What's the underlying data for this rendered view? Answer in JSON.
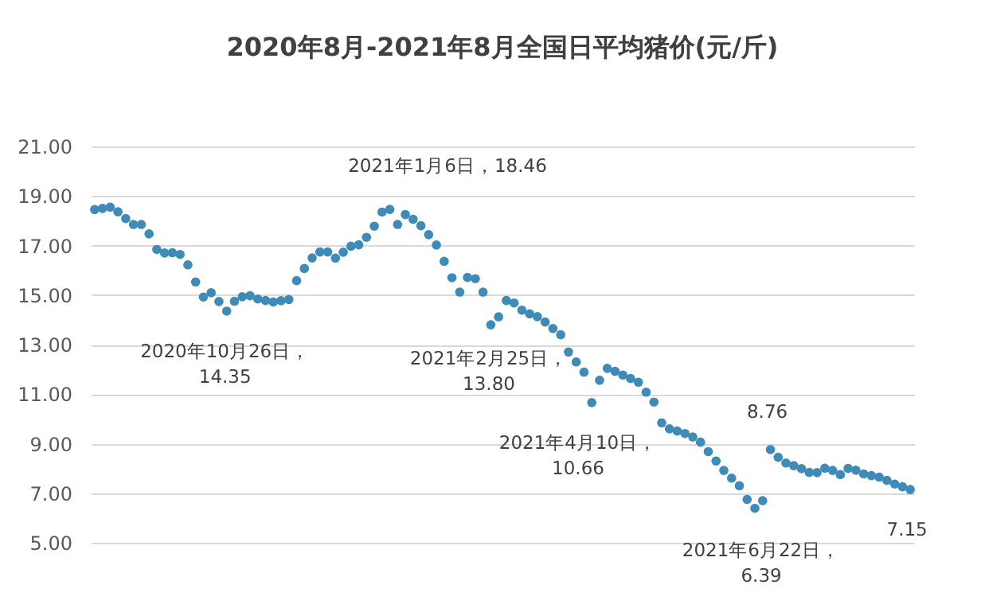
{
  "chart_data": {
    "type": "scatter",
    "title": "2020年8月-2021年8月全国日平均猪价(元/斤)",
    "categories": [
      null,
      null,
      null,
      null,
      null,
      null,
      null,
      null,
      null,
      null,
      null,
      null,
      null,
      null,
      null,
      null,
      null,
      null,
      null,
      null,
      null,
      null,
      null,
      null,
      null,
      null,
      null,
      null,
      null,
      null,
      null,
      null,
      null,
      null,
      null,
      null,
      null,
      null,
      null,
      null,
      null,
      null,
      null,
      null,
      null,
      null,
      null,
      null,
      null,
      null,
      null,
      null,
      null,
      null,
      null,
      null,
      null,
      null,
      null,
      null,
      null,
      null,
      null,
      null,
      null,
      null,
      null,
      null,
      null,
      null,
      null,
      null,
      null,
      null,
      null,
      null,
      null,
      null,
      null,
      null,
      null,
      null,
      null,
      null,
      null,
      null,
      null,
      null,
      null,
      null,
      null,
      null,
      null,
      null,
      null,
      null,
      null,
      null,
      null,
      null,
      null,
      null,
      null,
      null,
      null,
      null
    ],
    "series": [
      {
        "color": "#3f8bb8",
        "values": [
          18.45,
          18.5,
          18.55,
          18.36,
          18.09,
          17.85,
          17.85,
          17.47,
          16.84,
          16.7,
          16.71,
          16.64,
          16.22,
          15.53,
          14.92,
          15.09,
          14.74,
          14.35,
          14.75,
          14.93,
          14.97,
          14.84,
          14.78,
          14.72,
          14.77,
          14.82,
          15.58,
          16.07,
          16.5,
          16.74,
          16.74,
          16.49,
          16.73,
          16.97,
          17.03,
          17.33,
          17.78,
          18.35,
          18.46,
          17.85,
          18.25,
          18.06,
          17.8,
          17.44,
          17.02,
          16.36,
          15.7,
          15.12,
          15.71,
          15.66,
          15.12,
          13.8,
          14.12,
          14.78,
          14.68,
          14.39,
          14.24,
          14.13,
          13.91,
          13.65,
          13.4,
          12.7,
          12.3,
          11.89,
          10.66,
          11.56,
          12.04,
          11.92,
          11.77,
          11.63,
          11.48,
          11.08,
          10.68,
          9.84,
          9.6,
          9.51,
          9.41,
          9.27,
          9.06,
          8.68,
          8.3,
          7.92,
          7.61,
          7.3,
          6.75,
          6.39,
          6.7,
          8.76,
          8.45,
          8.22,
          8.11,
          7.99,
          7.84,
          7.83,
          8.01,
          7.92,
          7.75,
          8.0,
          7.93,
          7.78,
          7.71,
          7.65,
          7.52,
          7.37,
          7.26,
          7.15
        ]
      }
    ],
    "ylim": [
      5,
      21
    ],
    "yticks": [
      {
        "value": 5,
        "label": "5.00"
      },
      {
        "value": 7,
        "label": "7.00"
      },
      {
        "value": 9,
        "label": "9.00"
      },
      {
        "value": 11,
        "label": "11.00"
      },
      {
        "value": 13,
        "label": "13.00"
      },
      {
        "value": 15,
        "label": "15.00"
      },
      {
        "value": 17,
        "label": "17.00"
      },
      {
        "value": 19,
        "label": "19.00"
      },
      {
        "value": 21,
        "label": "21.00"
      }
    ],
    "grid": "y",
    "marker": "circle",
    "tick_labels": "y",
    "annotations": [
      {
        "text": "2020年10月26日，\n14.35",
        "y": 14.35
      },
      "2021年1月6日，18.46",
      "2021年2月25日，\n13.80",
      "2021年4月10日，\n10.66",
      {
        "text": "2021年6月22日，\n6.39",
        "y": 6.39
      },
      {
        "text": "8.76",
        "y": 8.76
      },
      {
        "text": "7.15",
        "y": 7.15
      }
    ]
  }
}
